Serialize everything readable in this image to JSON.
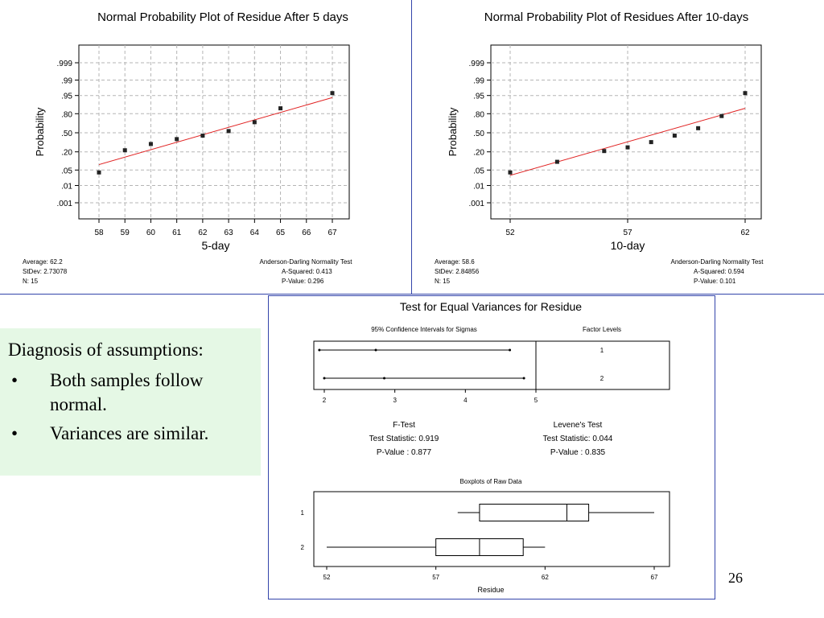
{
  "chart_data": [
    {
      "type": "scatter",
      "title": "Normal Probability Plot of Residue After 5 days",
      "xlabel": "5-day",
      "ylabel": "Probability",
      "x_ticks": [
        "58",
        "59",
        "60",
        "61",
        "62",
        "63",
        "64",
        "65",
        "66",
        "67"
      ],
      "y_ticks": [
        ".999",
        ".99",
        ".95",
        ".80",
        ".50",
        ".20",
        ".05",
        ".01",
        ".001"
      ],
      "y_scale": "normal probability",
      "grid": true,
      "points": [
        {
          "x": 58,
          "p": 0.04
        },
        {
          "x": 59,
          "p": 0.22
        },
        {
          "x": 60,
          "p": 0.31
        },
        {
          "x": 61,
          "p": 0.39
        },
        {
          "x": 62,
          "p": 0.45
        },
        {
          "x": 63,
          "p": 0.53
        },
        {
          "x": 64,
          "p": 0.68
        },
        {
          "x": 65,
          "p": 0.86
        },
        {
          "x": 67,
          "p": 0.96
        }
      ],
      "fit_line": [
        {
          "x": 58,
          "p": 0.08
        },
        {
          "x": 67,
          "p": 0.94
        }
      ],
      "stats_left": [
        "Average: 62.2",
        "StDev: 2.73078",
        "N: 15"
      ],
      "stats_right": [
        "Anderson-Darling Normality Test",
        "A-Squared: 0.413",
        "P-Value:   0.296"
      ]
    },
    {
      "type": "scatter",
      "title": "Normal Probability Plot of Residues After 10-days",
      "xlabel": "10-day",
      "ylabel": "Probability",
      "x_ticks": [
        "52",
        "57",
        "62"
      ],
      "y_ticks": [
        ".999",
        ".99",
        ".95",
        ".80",
        ".50",
        ".20",
        ".05",
        ".01",
        ".001"
      ],
      "y_scale": "normal probability",
      "grid": true,
      "points": [
        {
          "x": 52,
          "p": 0.04
        },
        {
          "x": 54,
          "p": 0.1
        },
        {
          "x": 56,
          "p": 0.21
        },
        {
          "x": 57,
          "p": 0.26
        },
        {
          "x": 58,
          "p": 0.34
        },
        {
          "x": 59,
          "p": 0.45
        },
        {
          "x": 60,
          "p": 0.58
        },
        {
          "x": 61,
          "p": 0.77
        },
        {
          "x": 62,
          "p": 0.96
        }
      ],
      "fit_line": [
        {
          "x": 52,
          "p": 0.03
        },
        {
          "x": 62,
          "p": 0.86
        }
      ],
      "stats_left": [
        "Average: 58.6",
        "StDev: 2.84856",
        "N: 15"
      ],
      "stats_right": [
        "Anderson-Darling Normality Test",
        "A-Squared: 0.594",
        "P-Value:   0.101"
      ]
    },
    {
      "type": "interval",
      "title": "Test for Equal Variances for Residue",
      "subtitle": "95% Confidence Intervals for Sigmas",
      "factor_header": "Factor Levels",
      "x_ticks": [
        "2",
        "3",
        "4",
        "5"
      ],
      "intervals": [
        {
          "level": "1",
          "low": 1.93,
          "est": 2.73,
          "high": 4.63
        },
        {
          "level": "2",
          "low": 2.0,
          "est": 2.85,
          "high": 4.83
        }
      ],
      "f_test": {
        "title": "F-Test",
        "statistic": "Test Statistic: 0.919",
        "pvalue": "P-Value      : 0.877"
      },
      "levene": {
        "title": "Levene's Test",
        "statistic": "Test Statistic: 0.044",
        "pvalue": "P-Value      : 0.835"
      }
    },
    {
      "type": "boxplot",
      "title": "Boxplots of Raw Data",
      "xlabel": "Residue",
      "x_ticks": [
        "52",
        "57",
        "62",
        "67"
      ],
      "groups": [
        {
          "label": "1",
          "min": 58,
          "q1": 59,
          "median": 63,
          "q3": 64,
          "max": 67
        },
        {
          "label": "2",
          "min": 52,
          "q1": 57,
          "median": 59,
          "q3": 61,
          "max": 62
        }
      ]
    }
  ],
  "diagnosis": {
    "heading": "Diagnosis of assumptions:",
    "bullet_char": "•",
    "items": [
      "Both samples follow normal.",
      "Variances are similar."
    ]
  },
  "page_number": "26"
}
